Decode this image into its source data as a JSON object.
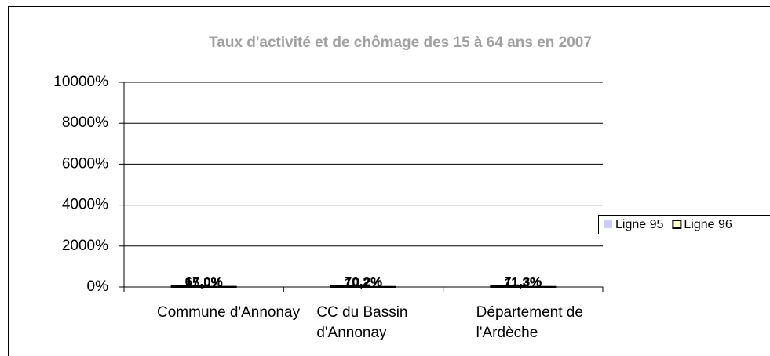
{
  "chart_data": {
    "type": "bar",
    "title": "Taux d'activité et de chômage des 15 à 64 ans en 2007",
    "categories": [
      "Commune d'Annonay",
      "CC du Bassin d'Annonay",
      "Département de l'Ardèche"
    ],
    "series": [
      {
        "name": "Ligne 95",
        "color": "#ccccff",
        "values": [
          67.0,
          70.2,
          71.3
        ],
        "value_labels": [
          "67,0%",
          "70,2%",
          "71,3%"
        ]
      },
      {
        "name": "Ligne 96",
        "color": "#ffffcc",
        "values": [
          15.0,
          10.2,
          11.3
        ],
        "value_labels": [
          "15,0%",
          "10,2%",
          "11,3%"
        ]
      }
    ],
    "ylim": [
      0,
      10000
    ],
    "yticks": [
      {
        "value": 0,
        "label": "0%"
      },
      {
        "value": 2000,
        "label": "2000%"
      },
      {
        "value": 4000,
        "label": "4000%"
      },
      {
        "value": 6000,
        "label": "6000%"
      },
      {
        "value": 8000,
        "label": "8000%"
      },
      {
        "value": 10000,
        "label": "10000%"
      }
    ],
    "grid": true,
    "legend": "right"
  }
}
